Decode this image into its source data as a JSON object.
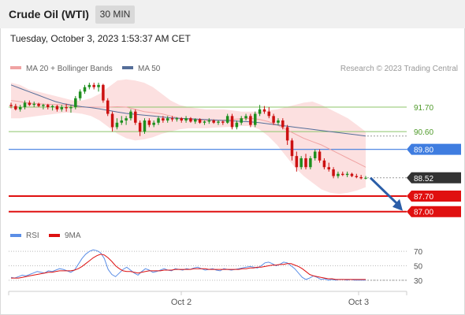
{
  "header": {
    "title": "Crude Oil (WTI)",
    "timeframe": "30 MIN"
  },
  "timestamp": "Tuesday, October 3, 2023 1:53:37 AM CET",
  "legend": {
    "ma20_bb": "MA 20 + Bollinger Bands",
    "ma50": "MA 50",
    "rsi": "RSI",
    "rsi_ma": "9MA"
  },
  "copyright": "Research © 2023 Trading Central",
  "colors": {
    "up": "#1e8f1e",
    "down": "#cc1111",
    "bollinger": "#fbd6d6",
    "ma20": "#f0a3a3",
    "ma50": "#556e99",
    "resistance": "#8cc56a",
    "pivot": "#3f7de0",
    "support": "#e01010",
    "last_price": "#333333",
    "rsi": "#5b8ee6",
    "rsi_ma": "#dd1111"
  },
  "chart_data": {
    "type": "candlestick",
    "x_labels": [
      "Oct 2",
      "Oct 3"
    ],
    "ylim": [
      86.6,
      92.8
    ],
    "levels": [
      {
        "name": "resistance-2",
        "value": 91.7,
        "label": "91.70",
        "kind": "resistance"
      },
      {
        "name": "resistance-1",
        "value": 90.6,
        "label": "90.60",
        "kind": "resistance"
      },
      {
        "name": "pivot",
        "value": 89.8,
        "label": "89.80",
        "kind": "pivot"
      },
      {
        "name": "last-price",
        "value": 88.52,
        "label": "88.52",
        "kind": "last"
      },
      {
        "name": "support-1",
        "value": 87.7,
        "label": "87.70",
        "kind": "support"
      },
      {
        "name": "support-2",
        "value": 87.0,
        "label": "87.00",
        "kind": "support"
      }
    ],
    "candles": [
      {
        "o": 91.8,
        "h": 91.9,
        "l": 91.65,
        "c": 91.75
      },
      {
        "o": 91.75,
        "h": 91.85,
        "l": 91.55,
        "c": 91.6
      },
      {
        "o": 91.6,
        "h": 91.8,
        "l": 91.5,
        "c": 91.7
      },
      {
        "o": 91.7,
        "h": 92.0,
        "l": 91.6,
        "c": 91.9
      },
      {
        "o": 91.9,
        "h": 92.0,
        "l": 91.75,
        "c": 91.8
      },
      {
        "o": 91.8,
        "h": 91.95,
        "l": 91.7,
        "c": 91.85
      },
      {
        "o": 91.85,
        "h": 91.9,
        "l": 91.7,
        "c": 91.75
      },
      {
        "o": 91.75,
        "h": 91.85,
        "l": 91.6,
        "c": 91.8
      },
      {
        "o": 91.8,
        "h": 91.85,
        "l": 91.6,
        "c": 91.7
      },
      {
        "o": 91.7,
        "h": 91.8,
        "l": 91.55,
        "c": 91.75
      },
      {
        "o": 91.75,
        "h": 91.8,
        "l": 91.5,
        "c": 91.6
      },
      {
        "o": 91.6,
        "h": 91.8,
        "l": 91.5,
        "c": 91.7
      },
      {
        "o": 91.7,
        "h": 91.85,
        "l": 91.5,
        "c": 91.65
      },
      {
        "o": 91.65,
        "h": 91.8,
        "l": 91.45,
        "c": 91.7
      },
      {
        "o": 91.7,
        "h": 92.2,
        "l": 91.6,
        "c": 92.1
      },
      {
        "o": 92.1,
        "h": 92.5,
        "l": 92.0,
        "c": 92.4
      },
      {
        "o": 92.4,
        "h": 92.7,
        "l": 92.3,
        "c": 92.6
      },
      {
        "o": 92.6,
        "h": 92.8,
        "l": 92.5,
        "c": 92.7
      },
      {
        "o": 92.7,
        "h": 92.8,
        "l": 92.5,
        "c": 92.6
      },
      {
        "o": 92.6,
        "h": 92.8,
        "l": 92.4,
        "c": 92.7
      },
      {
        "o": 92.7,
        "h": 92.75,
        "l": 91.9,
        "c": 92.0
      },
      {
        "o": 92.0,
        "h": 92.1,
        "l": 91.3,
        "c": 91.4
      },
      {
        "o": 91.4,
        "h": 91.5,
        "l": 90.6,
        "c": 90.8
      },
      {
        "o": 90.8,
        "h": 91.2,
        "l": 90.7,
        "c": 91.0
      },
      {
        "o": 91.0,
        "h": 91.3,
        "l": 90.9,
        "c": 91.1
      },
      {
        "o": 91.1,
        "h": 91.3,
        "l": 90.9,
        "c": 91.2
      },
      {
        "o": 91.2,
        "h": 91.6,
        "l": 91.1,
        "c": 91.5
      },
      {
        "o": 91.5,
        "h": 91.6,
        "l": 90.9,
        "c": 91.0
      },
      {
        "o": 91.0,
        "h": 91.1,
        "l": 90.4,
        "c": 90.6
      },
      {
        "o": 90.6,
        "h": 91.2,
        "l": 90.5,
        "c": 91.1
      },
      {
        "o": 91.1,
        "h": 91.2,
        "l": 90.8,
        "c": 90.9
      },
      {
        "o": 90.9,
        "h": 91.1,
        "l": 90.8,
        "c": 91.0
      },
      {
        "o": 91.0,
        "h": 91.3,
        "l": 90.9,
        "c": 91.2
      },
      {
        "o": 91.2,
        "h": 91.3,
        "l": 91.0,
        "c": 91.1
      },
      {
        "o": 91.1,
        "h": 91.3,
        "l": 91.0,
        "c": 91.2
      },
      {
        "o": 91.2,
        "h": 91.3,
        "l": 91.05,
        "c": 91.15
      },
      {
        "o": 91.15,
        "h": 91.25,
        "l": 91.05,
        "c": 91.2
      },
      {
        "o": 91.2,
        "h": 91.25,
        "l": 91.0,
        "c": 91.1
      },
      {
        "o": 91.1,
        "h": 91.3,
        "l": 91.0,
        "c": 91.2
      },
      {
        "o": 91.2,
        "h": 91.25,
        "l": 91.0,
        "c": 91.05
      },
      {
        "o": 91.05,
        "h": 91.2,
        "l": 90.95,
        "c": 91.15
      },
      {
        "o": 91.15,
        "h": 91.2,
        "l": 90.95,
        "c": 91.0
      },
      {
        "o": 91.0,
        "h": 91.1,
        "l": 90.9,
        "c": 91.05
      },
      {
        "o": 91.05,
        "h": 91.2,
        "l": 90.95,
        "c": 91.1
      },
      {
        "o": 91.1,
        "h": 91.15,
        "l": 90.95,
        "c": 91.0
      },
      {
        "o": 91.0,
        "h": 91.1,
        "l": 90.9,
        "c": 91.05
      },
      {
        "o": 91.05,
        "h": 91.1,
        "l": 90.9,
        "c": 91.0
      },
      {
        "o": 91.0,
        "h": 91.4,
        "l": 90.95,
        "c": 91.3
      },
      {
        "o": 91.3,
        "h": 91.4,
        "l": 90.7,
        "c": 90.8
      },
      {
        "o": 90.8,
        "h": 91.1,
        "l": 90.7,
        "c": 91.0
      },
      {
        "o": 91.0,
        "h": 91.3,
        "l": 90.9,
        "c": 91.2
      },
      {
        "o": 91.2,
        "h": 91.4,
        "l": 91.1,
        "c": 91.3
      },
      {
        "o": 91.3,
        "h": 91.4,
        "l": 90.8,
        "c": 90.9
      },
      {
        "o": 90.9,
        "h": 91.5,
        "l": 90.8,
        "c": 91.4
      },
      {
        "o": 91.4,
        "h": 91.8,
        "l": 91.3,
        "c": 91.6
      },
      {
        "o": 91.6,
        "h": 91.75,
        "l": 91.4,
        "c": 91.5
      },
      {
        "o": 91.5,
        "h": 91.7,
        "l": 91.2,
        "c": 91.3
      },
      {
        "o": 91.3,
        "h": 91.4,
        "l": 90.9,
        "c": 91.0
      },
      {
        "o": 91.0,
        "h": 91.2,
        "l": 90.9,
        "c": 91.1
      },
      {
        "o": 91.1,
        "h": 91.2,
        "l": 90.7,
        "c": 90.8
      },
      {
        "o": 90.8,
        "h": 90.9,
        "l": 90.0,
        "c": 90.2
      },
      {
        "o": 90.2,
        "h": 90.3,
        "l": 89.3,
        "c": 89.5
      },
      {
        "o": 89.5,
        "h": 89.7,
        "l": 88.8,
        "c": 89.0
      },
      {
        "o": 89.0,
        "h": 89.5,
        "l": 88.9,
        "c": 89.4
      },
      {
        "o": 89.4,
        "h": 89.6,
        "l": 88.9,
        "c": 89.0
      },
      {
        "o": 89.0,
        "h": 89.5,
        "l": 88.9,
        "c": 89.4
      },
      {
        "o": 89.4,
        "h": 89.8,
        "l": 89.3,
        "c": 89.7
      },
      {
        "o": 89.7,
        "h": 89.8,
        "l": 89.2,
        "c": 89.3
      },
      {
        "o": 89.3,
        "h": 89.4,
        "l": 88.9,
        "c": 89.0
      },
      {
        "o": 89.0,
        "h": 89.2,
        "l": 88.8,
        "c": 88.9
      },
      {
        "o": 88.9,
        "h": 89.0,
        "l": 88.5,
        "c": 88.6
      },
      {
        "o": 88.6,
        "h": 88.8,
        "l": 88.5,
        "c": 88.7
      },
      {
        "o": 88.7,
        "h": 88.8,
        "l": 88.6,
        "c": 88.65
      },
      {
        "o": 88.65,
        "h": 88.8,
        "l": 88.55,
        "c": 88.7
      },
      {
        "o": 88.7,
        "h": 88.75,
        "l": 88.55,
        "c": 88.6
      },
      {
        "o": 88.6,
        "h": 88.7,
        "l": 88.5,
        "c": 88.55
      },
      {
        "o": 88.55,
        "h": 88.65,
        "l": 88.45,
        "c": 88.5
      },
      {
        "o": 88.5,
        "h": 88.6,
        "l": 88.45,
        "c": 88.52
      }
    ],
    "bollinger_upper": [
      92.8,
      92.7,
      92.5,
      92.4,
      92.3,
      92.2,
      92.1,
      92.0,
      92.0,
      92.1,
      92.3,
      92.6,
      92.9,
      92.95,
      92.9,
      92.8,
      92.6,
      92.3,
      92.0,
      91.8,
      91.7,
      91.65,
      91.6,
      91.6,
      91.6,
      91.55,
      91.5,
      91.5,
      91.5,
      91.55,
      91.6,
      91.7,
      91.8,
      91.9,
      91.95,
      91.8,
      91.6,
      91.4,
      91.2,
      90.9,
      90.6
    ],
    "bollinger_lower": [
      91.2,
      91.2,
      91.25,
      91.3,
      91.35,
      91.4,
      91.45,
      91.45,
      91.4,
      91.3,
      91.1,
      90.8,
      90.5,
      90.3,
      90.2,
      90.25,
      90.35,
      90.5,
      90.6,
      90.7,
      90.75,
      90.75,
      90.75,
      90.78,
      90.8,
      90.82,
      90.85,
      90.85,
      90.7,
      90.4,
      90.0,
      89.5,
      89.0,
      88.6,
      88.3,
      88.0,
      87.85,
      87.8,
      87.85,
      87.95,
      88.1
    ],
    "ma20": [
      92.0,
      91.95,
      91.88,
      91.85,
      91.83,
      91.82,
      91.8,
      91.75,
      91.7,
      91.7,
      91.7,
      91.7,
      91.72,
      91.7,
      91.6,
      91.5,
      91.45,
      91.4,
      91.3,
      91.2,
      91.15,
      91.12,
      91.1,
      91.1,
      91.12,
      91.15,
      91.18,
      91.2,
      91.15,
      91.05,
      90.9,
      90.7,
      90.5,
      90.3,
      90.15,
      90.0,
      89.8,
      89.6,
      89.4,
      89.2,
      89.0
    ],
    "ma50": [
      92.7,
      92.55,
      92.4,
      92.25,
      92.1,
      91.95,
      91.85,
      91.78,
      91.72,
      91.68,
      91.62,
      91.55,
      91.48,
      91.42,
      91.38,
      91.34,
      91.3,
      91.26,
      91.22,
      91.2,
      91.18,
      91.16,
      91.14,
      91.12,
      91.1,
      91.08,
      91.06,
      91.04,
      91.0,
      90.95,
      90.9,
      90.85,
      90.8,
      90.75,
      90.7,
      90.65,
      90.6,
      90.55,
      90.5,
      90.45,
      90.4
    ],
    "rsi": {
      "levels": [
        70,
        50,
        30
      ],
      "ylim": [
        20,
        80
      ],
      "rsi": [
        34,
        33,
        35,
        37,
        36,
        38,
        40,
        42,
        41,
        40,
        43,
        42,
        44,
        46,
        45,
        43,
        41,
        44,
        52,
        60,
        66,
        70,
        72,
        71,
        68,
        60,
        45,
        38,
        35,
        40,
        45,
        48,
        44,
        40,
        37,
        42,
        46,
        44,
        41,
        42,
        44,
        46,
        44,
        43,
        46,
        45,
        44,
        46,
        45,
        47,
        48,
        46,
        44,
        45,
        46,
        44,
        43,
        46,
        45,
        44,
        45,
        46,
        47,
        48,
        49,
        48,
        47,
        50,
        54,
        55,
        53,
        50,
        52,
        55,
        54,
        50,
        46,
        40,
        34,
        31,
        33,
        36,
        34,
        31,
        32,
        30,
        31,
        30,
        31,
        31,
        30,
        31,
        30,
        30,
        30,
        30
      ],
      "ma": [
        33,
        33,
        33,
        34,
        35,
        36,
        37,
        38,
        39,
        40,
        41,
        41,
        42,
        43,
        43,
        43,
        43,
        44,
        46,
        49,
        53,
        57,
        61,
        64,
        66,
        65,
        61,
        56,
        50,
        46,
        43,
        42,
        42,
        41,
        40,
        41,
        42,
        43,
        43,
        43,
        43,
        44,
        44,
        44,
        45,
        45,
        45,
        45,
        45,
        46,
        46,
        46,
        46,
        45,
        45,
        45,
        45,
        45,
        45,
        45,
        45,
        45,
        46,
        46,
        47,
        47,
        48,
        48,
        49,
        50,
        51,
        51,
        52,
        52,
        53,
        53,
        51,
        49,
        46,
        42,
        38,
        36,
        35,
        34,
        33,
        32,
        32,
        31,
        31,
        31,
        31,
        31,
        31,
        31,
        31,
        31
      ]
    }
  }
}
